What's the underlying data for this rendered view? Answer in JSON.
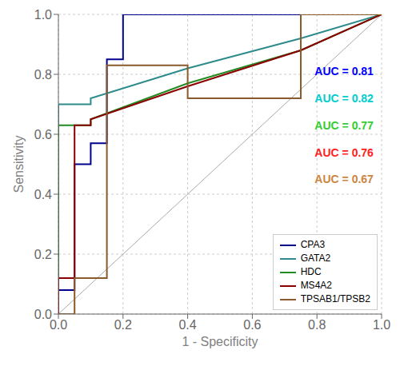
{
  "chart_data": {
    "type": "line",
    "xlabel": "1 - Specificity",
    "ylabel": "Sensitivity",
    "xlim": [
      0.0,
      1.0
    ],
    "ylim": [
      0.0,
      1.0
    ],
    "xticks": [
      {
        "value": 0.0,
        "label": "0.0"
      },
      0.2,
      0.4,
      0.6,
      0.8,
      {
        "value": 1.0,
        "label": "1.0"
      }
    ],
    "yticks": [
      {
        "value": 0.0,
        "label": "0.0"
      },
      0.2,
      0.4,
      0.6,
      0.8,
      {
        "value": 1.0,
        "label": "1.0"
      }
    ],
    "grid": true,
    "legend": "lower right",
    "reference_line": {
      "x": [
        0,
        1
      ],
      "values": [
        0,
        1
      ],
      "color": "#aaaaaa"
    },
    "series": [
      {
        "name": "CPA3",
        "color": "#00008B",
        "x": [
          0.0,
          0.0,
          0.05,
          0.05,
          0.1,
          0.1,
          0.15,
          0.15,
          0.2,
          0.2,
          0.25,
          0.25,
          1.0
        ],
        "values": [
          0.0,
          0.08,
          0.08,
          0.5,
          0.5,
          0.57,
          0.57,
          0.85,
          0.85,
          1.0,
          1.0,
          1.0,
          1.0
        ]
      },
      {
        "name": "GATA2",
        "color": "#2E8B8B",
        "x": [
          0.0,
          0.0,
          0.1,
          0.1,
          0.4,
          0.75,
          1.0
        ],
        "values": [
          0.0,
          0.7,
          0.7,
          0.72,
          0.82,
          0.92,
          1.0
        ]
      },
      {
        "name": "HDC",
        "color": "#228B22",
        "x": [
          0.0,
          0.0,
          0.1,
          0.1,
          0.4,
          0.75,
          1.0
        ],
        "values": [
          0.0,
          0.63,
          0.63,
          0.65,
          0.77,
          0.88,
          1.0
        ]
      },
      {
        "name": "MS4A2",
        "color": "#8B0000",
        "x": [
          0.0,
          0.0,
          0.05,
          0.05,
          0.1,
          0.1,
          0.4,
          0.75,
          1.0
        ],
        "values": [
          0.0,
          0.12,
          0.12,
          0.63,
          0.63,
          0.65,
          0.76,
          0.88,
          1.0
        ]
      },
      {
        "name": "TPSAB1/TPSB2",
        "color": "#8B5A2B",
        "x": [
          0.0,
          0.0,
          0.05,
          0.05,
          0.15,
          0.15,
          0.4,
          0.4,
          0.75,
          0.75,
          1.0
        ],
        "values": [
          0.0,
          0.0,
          0.0,
          0.12,
          0.12,
          0.83,
          0.83,
          0.72,
          0.72,
          1.0,
          1.0
        ]
      }
    ],
    "annotations": [
      {
        "text": "AUC = 0.81",
        "color": "#0000FF"
      },
      {
        "text": "AUC = 0.82",
        "color": "#00CDCD"
      },
      {
        "text": "AUC = 0.77",
        "color": "#32CD32"
      },
      {
        "text": "AUC = 0.76",
        "color": "#FF2020"
      },
      {
        "text": "AUC = 0.67",
        "color": "#CD8540"
      }
    ]
  }
}
